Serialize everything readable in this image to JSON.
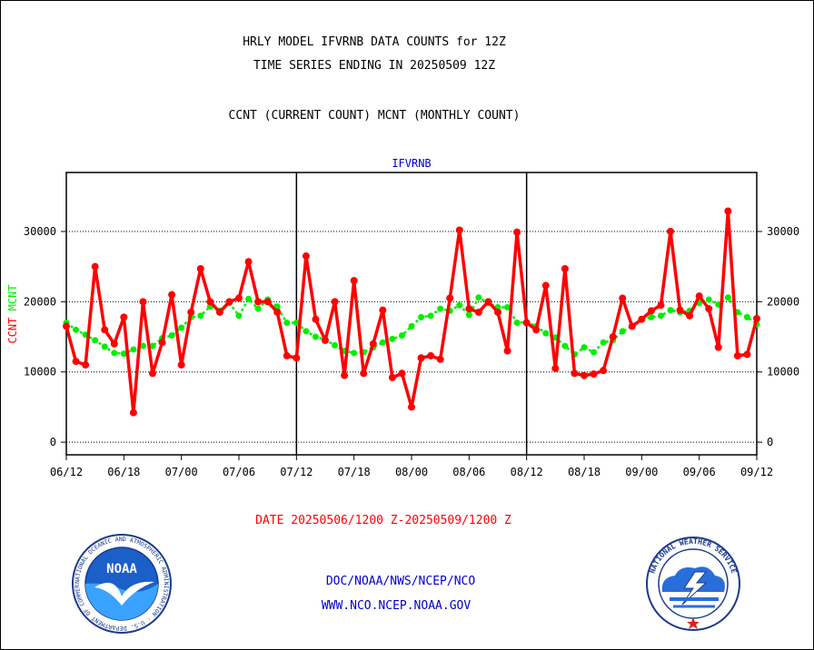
{
  "header": {
    "title_line1": "HRLY MODEL IFVRNB DATA COUNTS for 12Z",
    "title_line2": "TIME SERIES ENDING IN 20250509 12Z",
    "subtitle": "CCNT (CURRENT COUNT) MCNT (MONTHLY COUNT)"
  },
  "footer": {
    "date_range": "DATE 20250506/1200 Z-20250509/1200 Z",
    "credit_line1": "DOC/NOAA/NWS/NCEP/NCO",
    "credit_line2": "WWW.NCO.NCEP.NOAA.GOV"
  },
  "logos": {
    "left": {
      "text": "NOAA",
      "ring_text": "NATIONAL OCEANIC AND ATMOSPHERIC ADMINISTRATION · U.S. DEPARTMENT OF COMMERCE"
    },
    "right": {
      "ring_text": "NATIONAL WEATHER SERVICE"
    }
  },
  "colors": {
    "ccnt": "#ff0000",
    "mcnt": "#00ee00",
    "plot_label": "#0000cc",
    "footer_date": "#ff0000",
    "footer_credit": "#0000cc"
  },
  "chart_data": {
    "type": "line",
    "title": "IFVRNB",
    "ylabel": "CCNT  MCNT",
    "ylim": [
      -1800,
      38400
    ],
    "yticks": [
      0,
      10000,
      20000,
      30000
    ],
    "x_tick_labels": [
      "06/12",
      "06/18",
      "07/00",
      "07/06",
      "07/12",
      "07/18",
      "08/00",
      "08/06",
      "08/12",
      "08/18",
      "09/00",
      "09/06",
      "09/12"
    ],
    "x_range_hours": [
      0,
      72
    ],
    "panel_divider_hours": [
      24,
      48
    ],
    "grid": true,
    "series": [
      {
        "name": "CCNT",
        "x": [
          0,
          1,
          2,
          3,
          4,
          5,
          6,
          7,
          8,
          9,
          10,
          11,
          12,
          13,
          14,
          15,
          16,
          17,
          18,
          19,
          20,
          21,
          22,
          23,
          24,
          25,
          26,
          27,
          28,
          29,
          30,
          31,
          32,
          33,
          34,
          35,
          36,
          37,
          38,
          39,
          40,
          41,
          42,
          43,
          44,
          45,
          46,
          47,
          48,
          49,
          50,
          51,
          52,
          53,
          54,
          55,
          56,
          57,
          58,
          59,
          60,
          61,
          62,
          63,
          64,
          65,
          66,
          67,
          68,
          69,
          70,
          71,
          72
        ],
        "values": [
          16500,
          11500,
          11000,
          25000,
          16000,
          14000,
          17800,
          4200,
          20000,
          9800,
          14200,
          21000,
          11000,
          18500,
          24700,
          20000,
          18500,
          20000,
          20500,
          25700,
          20000,
          20000,
          18500,
          12300,
          12000,
          26500,
          17500,
          14500,
          20000,
          9500,
          23000,
          9800,
          14000,
          18800,
          9200,
          9800,
          5000,
          12000,
          12300,
          11800,
          20500,
          30200,
          19000,
          18500,
          20000,
          18500,
          13000,
          29900,
          17000,
          16000,
          22300,
          10500,
          24700,
          9800,
          9500,
          9700,
          10200,
          15000,
          20500,
          16500,
          17500,
          18700,
          19500,
          30000,
          18800,
          18000,
          20800,
          19000,
          13500,
          32900,
          12300,
          12500,
          17600
        ]
      },
      {
        "name": "MCNT",
        "x": [
          0,
          1,
          2,
          3,
          4,
          5,
          6,
          7,
          8,
          9,
          10,
          11,
          12,
          13,
          14,
          15,
          16,
          17,
          18,
          19,
          20,
          21,
          22,
          23,
          24,
          25,
          26,
          27,
          28,
          29,
          30,
          31,
          32,
          33,
          34,
          35,
          36,
          37,
          38,
          39,
          40,
          41,
          42,
          43,
          44,
          45,
          46,
          47,
          48,
          49,
          50,
          51,
          52,
          53,
          54,
          55,
          56,
          57,
          58,
          59,
          60,
          61,
          62,
          63,
          64,
          65,
          66,
          67,
          68,
          69,
          70,
          71,
          72
        ],
        "values": [
          17000,
          16000,
          15300,
          14500,
          13600,
          12700,
          12600,
          13200,
          13700,
          13700,
          14800,
          15200,
          16300,
          17800,
          18000,
          19300,
          18700,
          19800,
          18000,
          20400,
          19000,
          20300,
          19300,
          17000,
          17000,
          15800,
          15000,
          14600,
          13800,
          13000,
          12700,
          12800,
          13500,
          14200,
          14700,
          15200,
          16500,
          17800,
          18000,
          19000,
          18700,
          19500,
          18100,
          20600,
          19800,
          19200,
          19200,
          17000,
          17100,
          16500,
          15500,
          14900,
          13700,
          12500,
          13500,
          12800,
          14200,
          14500,
          15800,
          16500,
          17500,
          17800,
          18000,
          18800,
          18500,
          18700,
          19800,
          20300,
          19600,
          20600,
          18500,
          17800,
          16800
        ]
      }
    ]
  }
}
